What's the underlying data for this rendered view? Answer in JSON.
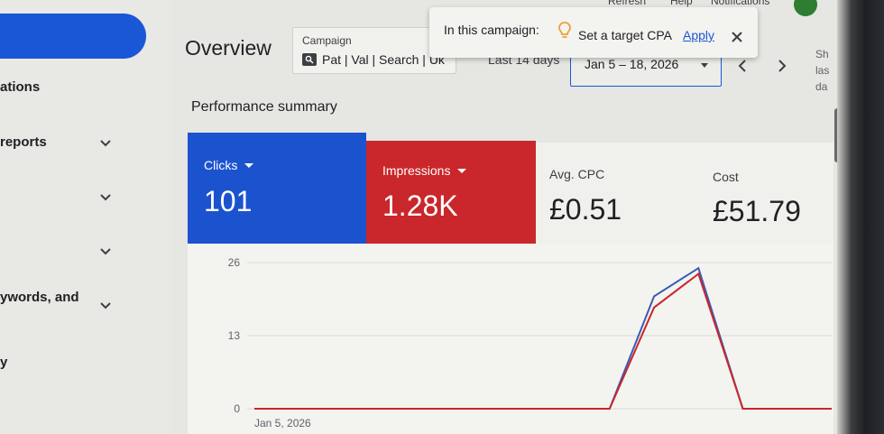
{
  "top_links": {
    "refresh": "Refresh",
    "help": "Help",
    "notifications": "Notifications"
  },
  "sidebar": {
    "items": [
      {
        "label": "ations"
      },
      {
        "label": "reports"
      },
      {
        "label": ""
      },
      {
        "label": ""
      },
      {
        "label": "ywords, and"
      },
      {
        "label": "y"
      }
    ]
  },
  "header": {
    "title": "Overview",
    "campaign_label": "Campaign",
    "campaign_name": "Pat | Val | Search | Uk",
    "range_label": "Last 14 days",
    "date_range": "Jan 5 – 18, 2026"
  },
  "side_text": [
    "Sh",
    "las",
    "da"
  ],
  "banner": {
    "prefix": "In this campaign:",
    "cta": "Set a target CPA",
    "apply": "Apply"
  },
  "performance": {
    "title": "Performance summary",
    "tiles": [
      {
        "label": "Clicks",
        "value": "101",
        "color": "#1b53cf"
      },
      {
        "label": "Impressions",
        "value": "1.28K",
        "color": "#c9272b"
      },
      {
        "label": "Avg. CPC",
        "value": "£0.51"
      },
      {
        "label": "Cost",
        "value": "£51.79"
      }
    ]
  },
  "chart_data": {
    "type": "line",
    "x": [
      "Jan 5, 2026",
      "Jan 6, 2026",
      "Jan 7, 2026",
      "Jan 8, 2026",
      "Jan 9, 2026",
      "Jan 10, 2026",
      "Jan 11, 2026",
      "Jan 12, 2026",
      "Jan 13, 2026",
      "Jan 14, 2026",
      "Jan 15, 2026",
      "Jan 16, 2026",
      "Jan 17, 2026",
      "Jan 18, 2026"
    ],
    "x_tick_labels": [
      "Jan 5, 2026"
    ],
    "y_ticks": [
      "26",
      "13",
      "0"
    ],
    "ylim": [
      0,
      26
    ],
    "grid": true,
    "series": [
      {
        "values": [
          0,
          0,
          0,
          0,
          0,
          0,
          0,
          0,
          0,
          20,
          25,
          0,
          0,
          0
        ],
        "color": "#3a5bb0"
      },
      {
        "values": [
          0,
          0,
          0,
          0,
          0,
          0,
          0,
          0,
          0,
          18,
          24,
          0,
          0,
          0
        ],
        "color": "#c9272b"
      }
    ]
  }
}
